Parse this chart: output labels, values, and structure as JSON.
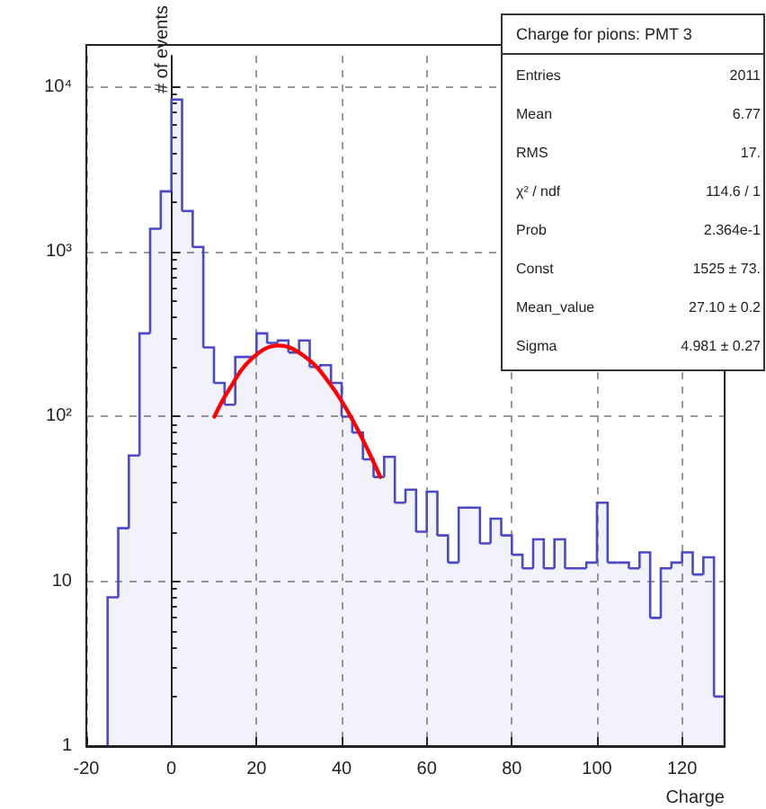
{
  "chart_data": {
    "type": "histogram",
    "xlabel": "Charge",
    "ylabel": "# of events",
    "log": "y",
    "grid": true,
    "xlim": [
      -20,
      130
    ],
    "xticks": [
      -20,
      0,
      20,
      40,
      60,
      80,
      100,
      120
    ],
    "ylim": [
      1,
      15500
    ],
    "yticks": [
      1,
      10,
      {
        "value": 100,
        "label": "10²"
      },
      {
        "value": 1000,
        "label": "10³"
      },
      {
        "value": 10000,
        "label": "10⁴"
      }
    ],
    "series": [
      {
        "color": "#4a4ac8",
        "bins": [
          -15,
          -12.5,
          -10,
          -7.5,
          -5,
          -2.5,
          0,
          2.5,
          5,
          7.5,
          10,
          12.5,
          15,
          17.5,
          20,
          22.5,
          25,
          27.5,
          30,
          32.5,
          35,
          37.5,
          40,
          42.5,
          45,
          47.5,
          50,
          52.5,
          55,
          57.5,
          60,
          62.5,
          65,
          67.5,
          70,
          72.5,
          75,
          77.5,
          80,
          82.5,
          85,
          87.5,
          90,
          92.5,
          95,
          97.5,
          100,
          102.5,
          105,
          107.5,
          110,
          112.5,
          115,
          117.5,
          120,
          122.5,
          125,
          127.5,
          130
        ],
        "values": [
          8,
          21,
          58,
          320,
          1380,
          2330,
          8400,
          1770,
          1070,
          263,
          160,
          118,
          230,
          230,
          320,
          280,
          290,
          245,
          290,
          200,
          205,
          160,
          100,
          80,
          55,
          43,
          57,
          30,
          36,
          20,
          35,
          19,
          13,
          28,
          28,
          17,
          24,
          19,
          14.5,
          12,
          18,
          12,
          18,
          12,
          12,
          13,
          30,
          13,
          13,
          12,
          15,
          6,
          12,
          13,
          15,
          11,
          14,
          2
        ]
      },
      {
        "type": "line",
        "color": "#ff0000",
        "marker": "none",
        "x": [
          10.1,
          13.2,
          18.9,
          25.2,
          31.5,
          37.1,
          42.8,
          49.1
        ],
        "values": [
          100,
          141,
          225,
          270,
          230,
          160,
          93,
          43
        ]
      }
    ],
    "annotations": [
      "Charge for pions: PMT 3",
      "Entries",
      "2011",
      "Mean",
      "6.77",
      "RMS",
      "17.",
      "χ² / ndf",
      "114.6 / 1",
      "Prob",
      "2.364e-1",
      "Const",
      "1525 ± 73.",
      "Mean_value",
      "27.10 ± 0.2",
      "Sigma",
      "4.981 ± 0.27"
    ]
  }
}
